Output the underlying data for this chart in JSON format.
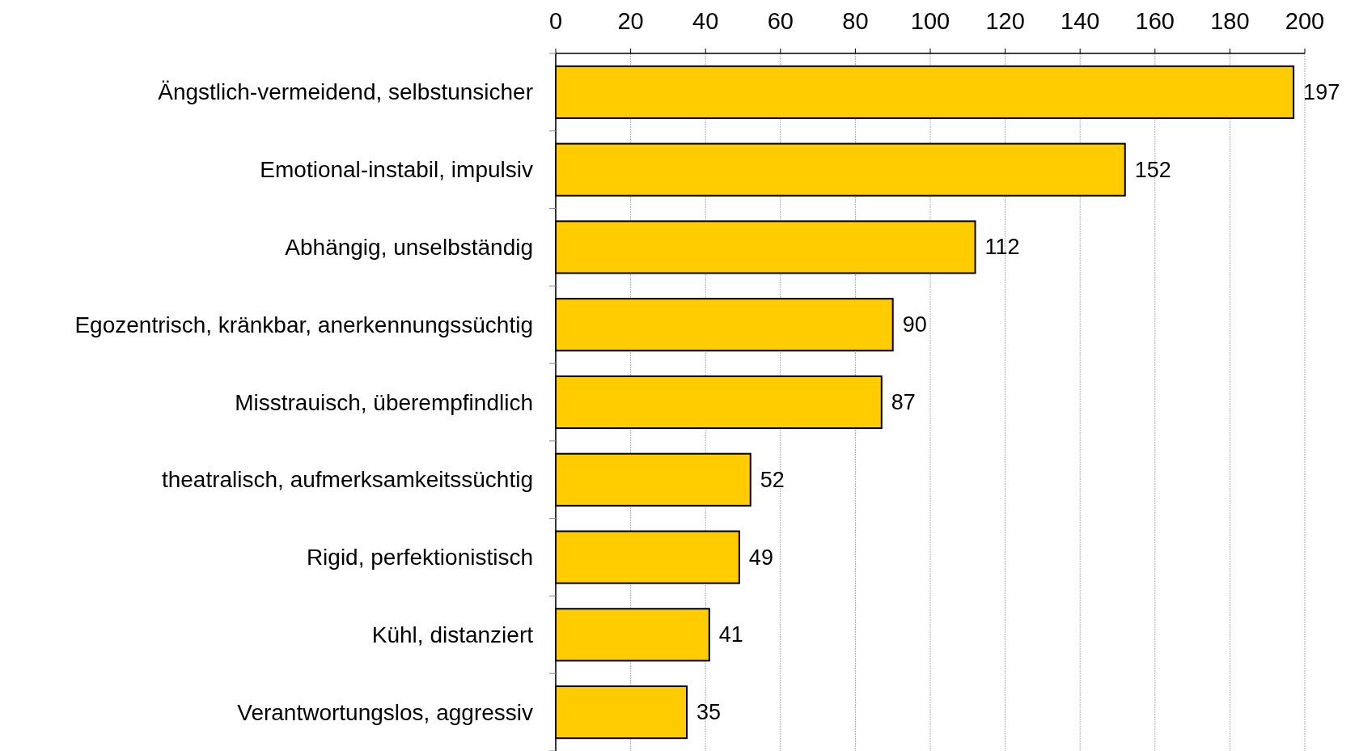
{
  "chart_data": {
    "type": "bar",
    "orientation": "horizontal",
    "categories": [
      "Ängstlich-vermeidend, selbstunsicher",
      "Emotional-instabil, impulsiv",
      "Abhängig, unselbständig",
      "Egozentrisch, kränkbar, anerkennungssüchtig",
      "Misstrauisch, überempfindlich",
      "theatralisch, aufmerksamkeitssüchtig",
      "Rigid, perfektionistisch",
      "Kühl, distanziert",
      "Verantwortungslos, aggressiv"
    ],
    "values": [
      197,
      152,
      112,
      90,
      87,
      52,
      49,
      41,
      35
    ],
    "color": "#ffcc00",
    "xlim": [
      0,
      200
    ],
    "xticks": [
      0,
      20,
      40,
      60,
      80,
      100,
      120,
      140,
      160,
      180,
      200
    ],
    "grid": "x",
    "data_labels": true
  }
}
